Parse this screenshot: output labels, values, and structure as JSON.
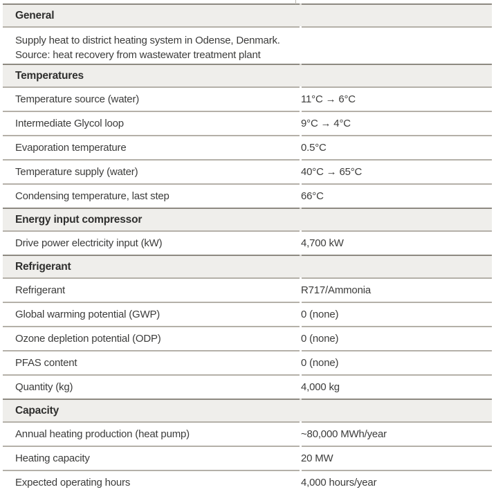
{
  "theme": {
    "text": "#3c3c3b",
    "header-text": "#2f2f2e",
    "header-bg": "#efeeeb",
    "div-light": "#b4b0a8",
    "div-dark": "#8d8981",
    "page-bg": "#ffffff"
  },
  "table": {
    "sections": [
      {
        "header": "General",
        "description_lines": [
          "Supply heat to district heating system in Odense, Denmark.",
          "Source: heat recovery from wastewater treatment plant"
        ],
        "rows": []
      },
      {
        "header": "Temperatures",
        "rows": [
          {
            "label": "Temperature source (water)",
            "value": "11°C → 6°C"
          },
          {
            "label": "Intermediate Glycol loop",
            "value": "9°C → 4°C"
          },
          {
            "label": "Evaporation temperature",
            "value": "0.5°C"
          },
          {
            "label": "Temperature supply (water)",
            "value": "40°C → 65°C"
          },
          {
            "label": "Condensing temperature, last step",
            "value": "66°C"
          }
        ]
      },
      {
        "header": "Energy input compressor",
        "rows": [
          {
            "label": "Drive power electricity input (kW)",
            "value": "4,700 kW"
          }
        ]
      },
      {
        "header": "Refrigerant",
        "rows": [
          {
            "label": "Refrigerant",
            "value": "R717/Ammonia"
          },
          {
            "label": "Global warming potential (GWP)",
            "value": "0 (none)"
          },
          {
            "label": "Ozone depletion potential (ODP)",
            "value": "0 (none)"
          },
          {
            "label": "PFAS content",
            "value": "0 (none)"
          },
          {
            "label": "Quantity (kg)",
            "value": "4,000 kg"
          }
        ]
      },
      {
        "header": "Capacity",
        "rows": [
          {
            "label": "Annual heating production (heat pump)",
            "value": "~80,000 MWh/year"
          },
          {
            "label": "Heating capacity",
            "value": "20 MW"
          },
          {
            "label": "Expected operating hours",
            "value": "4,000 hours/year"
          }
        ]
      }
    ]
  }
}
